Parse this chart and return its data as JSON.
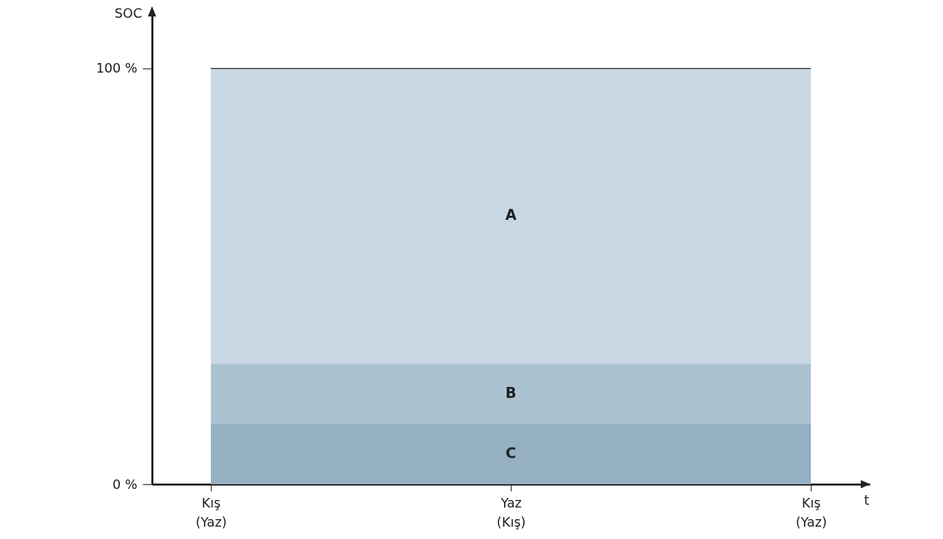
{
  "chart_data": {
    "type": "area",
    "stacked": true,
    "xlabel": "t",
    "ylabel": "SOC",
    "categories": [
      "Kış\n(Yaz)",
      "Yaz\n(Kış)",
      "Kış\n(Yaz)"
    ],
    "ylim": [
      0,
      114
    ],
    "yticks": [
      {
        "value": 0,
        "label": "0 %"
      },
      {
        "value": 100,
        "label": "100 %"
      }
    ],
    "series": [
      {
        "name": "C",
        "color": "#95b0c3",
        "values": [
          14.5,
          14.5,
          14.5
        ]
      },
      {
        "name": "B",
        "color": "#abc3d1",
        "values": [
          14.5,
          14.5,
          14.5
        ]
      },
      {
        "name": "A",
        "color": "#c8d8e2",
        "values": [
          71,
          71,
          71
        ]
      }
    ],
    "ref_lines": [
      {
        "axis": "y",
        "value": 100,
        "color": "#333333"
      }
    ],
    "grid": false
  }
}
